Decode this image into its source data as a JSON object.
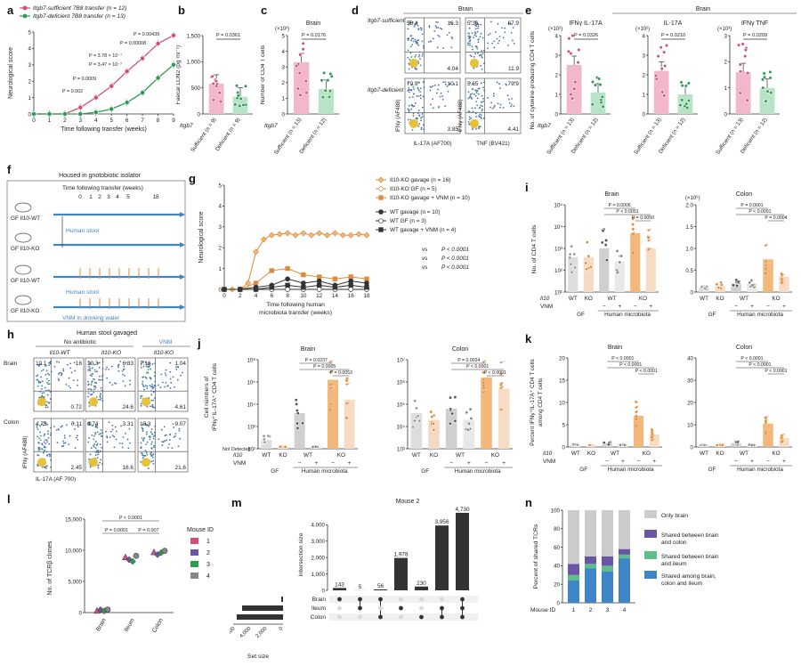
{
  "panel_letters": {
    "a": "a",
    "b": "b",
    "c": "c",
    "d": "d",
    "e": "e",
    "f": "f",
    "g": "g",
    "h": "h",
    "i": "i",
    "j": "j",
    "k": "k",
    "l": "l",
    "m": "m",
    "n": "n"
  },
  "colors": {
    "pink": "#d1507a",
    "green": "#2f9a55",
    "orange": "#e08a3c",
    "dark": "#333333",
    "grey": "#888888",
    "lightgrey": "#cccccc",
    "purple": "#6a55a6",
    "blue": "#3e86c6",
    "teal": "#5fbf8a"
  },
  "chart_data": [
    {
      "id": "a",
      "type": "line",
      "legend": [
        "Itgb7-sufficient 7B8 transfer (n = 12)",
        "Itgb7-deficient 7B8 transfer (n = 13)"
      ],
      "xlabel": "Time following transfer (weeks)",
      "ylabel": "Neurological score",
      "xticks": [
        "0",
        "1",
        "2",
        "3",
        "4",
        "5",
        "6",
        "7",
        "8",
        "9"
      ],
      "yticks": [
        "0",
        "1",
        "2",
        "3",
        "4",
        "5"
      ],
      "xlim": [
        0,
        9
      ],
      "ylim": [
        0,
        5
      ],
      "series": [
        {
          "name": "Itgb7-sufficient 7B8 transfer (n = 12)",
          "color": "#d1507a",
          "x": [
            0,
            1,
            2,
            3,
            4,
            5,
            6,
            7,
            8,
            9
          ],
          "y": [
            0,
            0,
            0,
            0.4,
            1.0,
            1.7,
            2.6,
            3.4,
            4.3,
            4.8
          ]
        },
        {
          "name": "Itgb7-deficient 7B8 transfer (n = 13)",
          "color": "#2f9a55",
          "x": [
            0,
            1,
            2,
            3,
            4,
            5,
            6,
            7,
            8,
            9
          ],
          "y": [
            0,
            0,
            0,
            0,
            0.1,
            0.3,
            0.7,
            1.3,
            2.2,
            3.0
          ]
        }
      ],
      "annotations": [
        "P = 0.00439",
        "P = 0.00008",
        "P = 3.78 × 10⁻⁷",
        "P = 3.47 × 10⁻⁷",
        "P = 0.0009",
        "P = 0.002"
      ]
    },
    {
      "id": "b",
      "type": "bar",
      "title": "",
      "ylabel": "Faecal LCN2 (pg ml⁻¹)",
      "yticks": [
        "0",
        "500",
        "1,000",
        "1,500"
      ],
      "ylim": [
        0,
        1500
      ],
      "categories": [
        "Sufficient (n = 9)",
        "Deficient (n = 9)"
      ],
      "group_label": "Itgb7",
      "values": [
        580,
        330
      ],
      "p": "P = 0.0361"
    },
    {
      "id": "c",
      "type": "bar",
      "title": "Brain",
      "ylabel": "Number of CD4 T cells",
      "yticks": [
        "0",
        "1",
        "2",
        "3",
        "4",
        "5"
      ],
      "exponent": "(×10³)",
      "ylim": [
        0,
        5
      ],
      "categories": [
        "Sufficient (n = 13)",
        "Deficient (n = 12)"
      ],
      "group_label": "Itgb7",
      "values": [
        3.3,
        1.6
      ],
      "p": "P = 0.0176"
    },
    {
      "id": "e",
      "type": "bar",
      "title": "Brain",
      "subplots": [
        {
          "title": "IFNγ IL-17A",
          "exponent": "(×10²)",
          "yticks": [
            "0",
            "1",
            "2",
            "3",
            "4"
          ],
          "values": [
            2.5,
            1.1
          ],
          "p": "P = 0.0326"
        },
        {
          "title": "IL-17A",
          "exponent": "(×10²)",
          "yticks": [
            "0",
            "1",
            "2",
            "3",
            "4"
          ],
          "values": [
            2.2,
            1.0
          ],
          "p": "P = 0.0210"
        },
        {
          "title": "IFNγ TNF",
          "exponent": "(×10³)",
          "yticks": [
            "0",
            "1",
            "2",
            "3"
          ],
          "values": [
            1.6,
            1.0
          ],
          "p": "P = 0.0209"
        }
      ],
      "ylabel": "No. of cytokine-producing CD4 T cells",
      "categories": [
        "Sufficient (n = 13)",
        "Deficient (n = 12)"
      ],
      "group_label": "Itgb7"
    },
    {
      "id": "g",
      "type": "line",
      "legend": [
        "Il10-KO gavage (n = 16)",
        "Il10-KO GF (n = 5)",
        "Il10-KO gavage + VNM (n = 10)",
        "WT gavage (n = 10)",
        "WT GF (n = 3)",
        "WT gavage + VNM (n = 4)"
      ],
      "xlabel": "Time following human microbiota transfer (weeks)",
      "ylabel": "Neurological score",
      "xticks": [
        "0",
        "2",
        "4",
        "6",
        "8",
        "10",
        "12",
        "14",
        "16",
        "18"
      ],
      "yticks": [
        "0",
        "1",
        "2",
        "3",
        "4",
        "5"
      ],
      "xlim": [
        0,
        18
      ],
      "ylim": [
        0,
        5
      ],
      "series": [
        {
          "name": "Il10-KO gavage (n = 16)",
          "color": "#e08a3c",
          "x": [
            0,
            1,
            2,
            3,
            4,
            5,
            6,
            7,
            8,
            9,
            10,
            11,
            12,
            13,
            14,
            15,
            16,
            17,
            18
          ],
          "y": [
            0,
            0,
            0,
            0.3,
            1.8,
            2.4,
            2.6,
            2.65,
            2.7,
            2.6,
            2.7,
            2.6,
            2.7,
            2.6,
            2.7,
            2.6,
            2.6,
            2.65,
            2.6
          ]
        },
        {
          "name": "Il10-KO GF (n = 5)",
          "color": "#e08a3c",
          "x": [
            0,
            2,
            4,
            6,
            8,
            10,
            12,
            14,
            16,
            18
          ],
          "y": [
            0,
            0,
            0,
            0,
            0,
            0,
            0,
            0,
            0,
            0
          ]
        },
        {
          "name": "Il10-KO gavage + VNM (n = 10)",
          "color": "#e08a3c",
          "x": [
            0,
            2,
            4,
            6,
            8,
            10,
            12,
            14,
            16,
            18
          ],
          "y": [
            0,
            0,
            0.3,
            0.9,
            1.0,
            0.7,
            0.6,
            0.5,
            0.6,
            0.5
          ]
        },
        {
          "name": "WT gavage (n = 10)",
          "color": "#333333",
          "x": [
            0,
            2,
            4,
            6,
            8,
            10,
            12,
            14,
            16,
            18
          ],
          "y": [
            0,
            0,
            0.1,
            0.2,
            0.5,
            0.3,
            0.4,
            0.2,
            0.4,
            0.3
          ]
        },
        {
          "name": "WT GF (n = 3)",
          "color": "#333333",
          "x": [
            0,
            2,
            4,
            6,
            8,
            10,
            12,
            14,
            16,
            18
          ],
          "y": [
            0,
            0,
            0,
            0,
            0,
            0,
            0,
            0,
            0,
            0
          ]
        },
        {
          "name": "WT gavage + VNM (n = 4)",
          "color": "#333333",
          "x": [
            0,
            2,
            4,
            6,
            8,
            10,
            12,
            14,
            16,
            18
          ],
          "y": [
            0,
            0,
            0,
            0.1,
            0.2,
            0.1,
            0.2,
            0.1,
            0.2,
            0.1
          ]
        }
      ],
      "annotations": [
        "P < 0.0001",
        "P < 0.0001",
        "P < 0.0001"
      ]
    },
    {
      "id": "i",
      "type": "bar",
      "subplots": [
        {
          "title": "Brain",
          "scale": "log",
          "yticks": [
            "10¹",
            "10²",
            "10³",
            "10⁴",
            "10⁵"
          ],
          "values": [
            2.6,
            2.6,
            3.0,
            2.4,
            3.7,
            3.0
          ],
          "p": [
            "P = 0.0006",
            "P < 0.0001",
            "P = 0.0050"
          ]
        },
        {
          "title": "Colon",
          "exponent": "(×10⁶)",
          "yticks": [
            "0",
            "0.5",
            "1.0",
            "1.5",
            "2.0"
          ],
          "values": [
            0.1,
            0.15,
            0.2,
            0.2,
            0.75,
            0.35
          ],
          "p": [
            "P = 0.0001",
            "P < 0.0001",
            "P = 0.0004"
          ]
        }
      ],
      "ylabel": "No. of CD4 T cells",
      "row_labels": [
        "Il10",
        "VNM"
      ],
      "categories": [
        "WT",
        "KO",
        "WT",
        "",
        "KO",
        ""
      ],
      "vnm": [
        "",
        "",
        "−",
        "+",
        "−",
        "+"
      ],
      "group_labels": [
        "GF",
        "Human microbiota"
      ]
    },
    {
      "id": "j",
      "type": "bar",
      "subplots": [
        {
          "title": "Brain",
          "scale": "log",
          "yticks": [
            "10²",
            "10³",
            "10⁴",
            "10⁵",
            "10⁶"
          ],
          "values": [
            2.4,
            1.6,
            3.6,
            1.6,
            5.1,
            4.2
          ],
          "p": [
            "P = 0.0237",
            "P = 0.0005",
            "P = 0.0053"
          ]
        },
        {
          "title": "Colon",
          "scale": "log",
          "yticks": [
            "10³",
            "10⁴",
            "10⁵",
            "10⁶",
            "10⁷"
          ],
          "values": [
            4.6,
            4.3,
            4.8,
            4.3,
            6.2,
            5.7
          ],
          "p": [
            "P = 0.0024",
            "P < 0.0001",
            "P < 0.0001"
          ]
        }
      ],
      "ylabel": "Cell numbers of IFNγ⁺IL-17A⁺ CD4 T cells",
      "detected_label": "Not Detected",
      "row_labels": [
        "Il10",
        "VNM"
      ],
      "categories": [
        "WT",
        "KO",
        "WT",
        "",
        "KO",
        ""
      ],
      "vnm": [
        "",
        "",
        "−",
        "+",
        "−",
        "+"
      ],
      "group_labels": [
        "GF",
        "Human microbiota"
      ]
    },
    {
      "id": "k",
      "type": "bar",
      "subplots": [
        {
          "title": "Brain",
          "yticks": [
            "0",
            "5",
            "10",
            "15",
            "20"
          ],
          "values": [
            0.3,
            0.3,
            0.9,
            0.2,
            7.0,
            2.8
          ],
          "p": [
            "P < 0.0001",
            "P < 0.0001",
            "P < 0.0001"
          ]
        },
        {
          "title": "Colon",
          "yticks": [
            "0",
            "10",
            "20",
            "30",
            "40"
          ],
          "values": [
            0.2,
            0.2,
            1.8,
            0.4,
            10.5,
            4.0
          ],
          "p": [
            "P < 0.0001",
            "P < 0.0001",
            "P < 0.0001"
          ]
        }
      ],
      "ylabel": "Percent IFNγ⁺IL-17A⁺ CD4 T cells among CD4 T cells",
      "row_labels": [
        "Il10",
        "VNM"
      ],
      "categories": [
        "WT",
        "KO",
        "WT",
        "",
        "KO",
        ""
      ],
      "vnm": [
        "",
        "",
        "−",
        "+",
        "−",
        "+"
      ],
      "group_labels": [
        "GF",
        "Human microbiota"
      ]
    },
    {
      "id": "l",
      "type": "scatter",
      "ylabel": "No. of TCRβ clones",
      "yticks": [
        "0",
        "5,000",
        "10,000",
        "15,000"
      ],
      "ylim": [
        0,
        15000
      ],
      "categories": [
        "Brain",
        "Ileum",
        "Colon"
      ],
      "legend_title": "Mouse ID",
      "legend": [
        "1",
        "2",
        "3",
        "4"
      ],
      "series": [
        {
          "name": "1",
          "color": "#d1507a",
          "values": [
            300,
            8900,
            9700
          ]
        },
        {
          "name": "2",
          "color": "#6a55a6",
          "values": [
            450,
            8500,
            9300
          ]
        },
        {
          "name": "3",
          "color": "#2f9a55",
          "values": [
            250,
            8200,
            9600
          ]
        },
        {
          "name": "4",
          "color": "#888888",
          "values": [
            500,
            9100,
            9900
          ]
        }
      ],
      "p": [
        "P < 0.0001",
        "P = 0.0001",
        "P = 0.007"
      ]
    },
    {
      "id": "m",
      "type": "bar",
      "title": "Mouse 2",
      "ylabel": "Intersection size",
      "yticks": [
        "0",
        "1,000",
        "2,000",
        "3,000",
        "4,000"
      ],
      "ylim": [
        0,
        5000
      ],
      "values": [
        143,
        5,
        56,
        1978,
        230,
        3956,
        4730
      ],
      "value_labels": [
        "143",
        "5",
        "56",
        "1,978",
        "230",
        "3,956",
        "4,730"
      ],
      "sets": [
        "Brain",
        "Ileum",
        "Colon"
      ],
      "set_size_label": "Set size",
      "set_sizes": [
        500,
        8300,
        9400
      ],
      "set_xticks": [
        "6,000",
        "4,000",
        "2,000",
        "0"
      ],
      "membership": [
        [
          1,
          0,
          0
        ],
        [
          1,
          1,
          0
        ],
        [
          1,
          0,
          1
        ],
        [
          0,
          1,
          0
        ],
        [
          0,
          0,
          1
        ],
        [
          0,
          1,
          1
        ],
        [
          1,
          1,
          1
        ]
      ]
    },
    {
      "id": "n",
      "type": "bar",
      "stacked": true,
      "ylabel": "Percent of shared TCRs",
      "yticks": [
        "0",
        "20",
        "40",
        "60",
        "80",
        "100"
      ],
      "ylim": [
        0,
        100
      ],
      "categories": [
        "1",
        "2",
        "3",
        "4"
      ],
      "xlabel": "Mouse ID",
      "series": [
        {
          "name": "Shared among brain, colon and ileum",
          "color": "#3e86c6",
          "values": [
            24,
            37,
            34,
            48
          ]
        },
        {
          "name": "Shared between brain and ileum",
          "color": "#5fbf8a",
          "values": [
            6,
            5,
            6,
            4
          ]
        },
        {
          "name": "Shared between brain and colon",
          "color": "#6a55a6",
          "values": [
            12,
            8,
            10,
            6
          ]
        },
        {
          "name": "Only brain",
          "color": "#cccccc",
          "values": [
            58,
            50,
            50,
            42
          ]
        }
      ]
    }
  ],
  "flow_d": {
    "title": "Brain",
    "rows": [
      "Itgb7-sufficient",
      "Itgb7-deficient"
    ],
    "xlabels": [
      "IL-17A (AF700)",
      "TNF (BV421)"
    ],
    "ylabels": [
      "IFNγ (AF488)",
      "IFNγ (AF488)"
    ],
    "quadrants": [
      [
        "58.4",
        "16.3",
        "",
        "4.04"
      ],
      [
        "5.36",
        "67.9",
        "",
        "11.9"
      ],
      [
        "79.9",
        "10.1",
        "",
        "3.85"
      ],
      [
        "5.65",
        "79.9",
        "",
        "4.41"
      ]
    ]
  },
  "flow_h": {
    "title": "Human stool gavaged",
    "header_no_antibiotic": "No antibiotic",
    "header_vnm": "VNM",
    "cols": [
      "Il10-WT",
      "Il10-KO",
      "Il10-KO"
    ],
    "rows": [
      "Brain",
      "Colon"
    ],
    "xlabel": "IL-17A (AF 700)",
    "ylabel": "IFNγ (AF488)",
    "quadrants": [
      [
        "10.1",
        "16",
        "",
        "0.72"
      ],
      [
        "10.3",
        "6.83",
        "",
        "24.6"
      ],
      [
        "7.16",
        "1.04",
        "",
        "4.61"
      ],
      [
        "4.75",
        "0.11",
        "",
        "2.45"
      ],
      [
        "6.74",
        "3.31",
        "",
        "16.6"
      ],
      [
        "10.3",
        "9.07",
        "",
        "21.6"
      ]
    ]
  },
  "schematic_f": {
    "title": "Housed in gnotobiotic isolator",
    "timeline_label": "Time following transfer (weeks)",
    "ticks": [
      "0",
      "1",
      "2",
      "3",
      "4",
      "5",
      "18"
    ],
    "mice": [
      "GF Il10-WT",
      "GF Il10-KO",
      "GF Il10-WT",
      "GF Il10-KO"
    ],
    "stool_label": "Human stool",
    "stool_label2": "Human stool",
    "vnm_label": "VNM in drinking water"
  }
}
